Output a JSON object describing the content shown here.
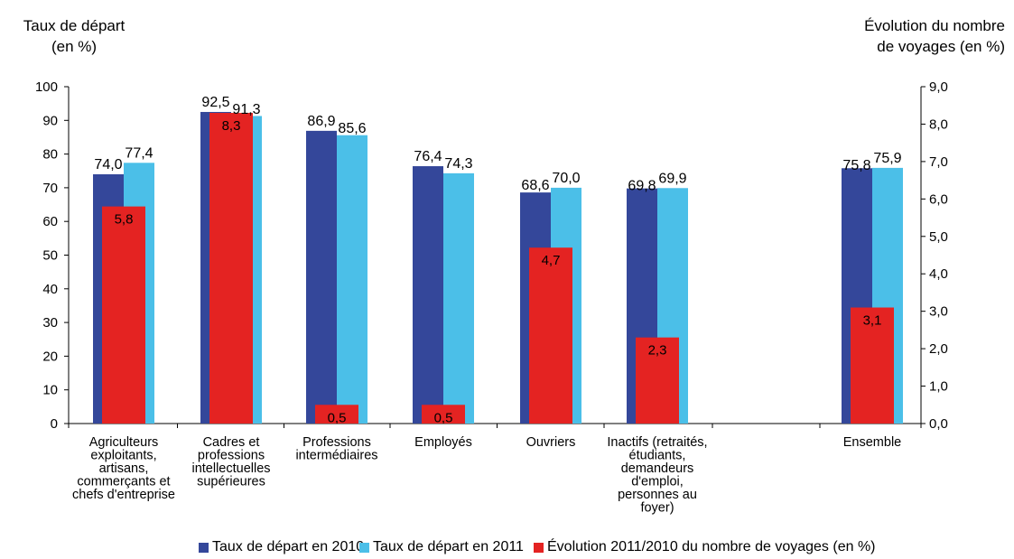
{
  "left_axis_title": [
    "Taux de départ",
    "(en %)"
  ],
  "right_axis_title": [
    "Évolution du nombre",
    "de voyages (en %)"
  ],
  "colors": {
    "s2010": "#34479a",
    "s2011": "#4bbfe8",
    "evol": "#e42322"
  },
  "legend": [
    {
      "label": "Taux de départ en 2010",
      "color": "#34479a"
    },
    {
      "label": "Taux de départ en 2011",
      "color": "#4bbfe8"
    },
    {
      "label": "Évolution 2011/2010 du nombre de voyages (en %)",
      "color": "#e42322"
    }
  ],
  "chart_data": {
    "type": "bar",
    "categories": [
      [
        "Agriculteurs",
        "exploitants,",
        "artisans,",
        "commerçants et",
        "chefs d'entreprise"
      ],
      [
        "Cadres et",
        "professions",
        "intellectuelles",
        "supérieures"
      ],
      [
        "Professions",
        "intermédiaires"
      ],
      [
        "Employés"
      ],
      [
        "Ouvriers"
      ],
      [
        "Inactifs (retraités,",
        "étudiants,",
        "demandeurs",
        "d'emploi,",
        "personnes au",
        "foyer)"
      ],
      [],
      [
        "Ensemble"
      ]
    ],
    "series": [
      {
        "name": "Taux de départ en 2010",
        "axis": "left",
        "values": [
          74.0,
          92.5,
          86.9,
          76.4,
          68.6,
          69.8,
          null,
          75.8
        ],
        "labels": [
          "74,0",
          "92,5",
          "86,9",
          "76,4",
          "68,6",
          "69,8",
          null,
          "75,8"
        ]
      },
      {
        "name": "Taux de départ en 2011",
        "axis": "left",
        "values": [
          77.4,
          91.3,
          85.6,
          74.3,
          70.0,
          69.9,
          null,
          75.9
        ],
        "labels": [
          "77,4",
          "91,3",
          "85,6",
          "74,3",
          "70,0",
          "69,9",
          null,
          "75,9"
        ]
      },
      {
        "name": "Évolution 2011/2010 du nombre de voyages (en %)",
        "axis": "right",
        "values": [
          5.8,
          8.3,
          0.5,
          0.5,
          4.7,
          2.3,
          null,
          3.1
        ],
        "labels": [
          "5,8",
          "8,3",
          "0,5",
          "0,5",
          "4,7",
          "2,3",
          null,
          "3,1"
        ]
      }
    ],
    "y_left": {
      "min": 0,
      "max": 100,
      "ticks": [
        "0",
        "10",
        "20",
        "30",
        "40",
        "50",
        "60",
        "70",
        "80",
        "90",
        "100"
      ]
    },
    "y_right": {
      "min": 0,
      "max": 9,
      "ticks": [
        "0,0",
        "1,0",
        "2,0",
        "3,0",
        "4,0",
        "5,0",
        "6,0",
        "7,0",
        "8,0",
        "9,0"
      ]
    },
    "grid": false,
    "legend_position": "bottom"
  }
}
